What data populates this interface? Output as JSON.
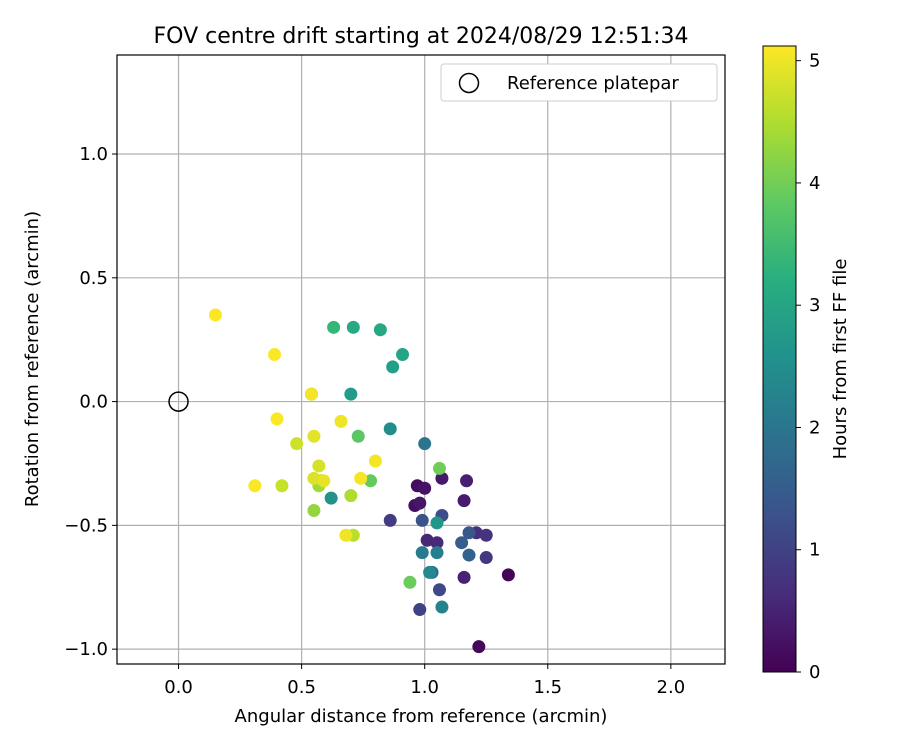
{
  "chart_data": {
    "type": "scatter",
    "title": "FOV centre drift starting at 2024/08/29 12:51:34",
    "xlabel": "Angular distance from reference (arcmin)",
    "ylabel": "Rotation from reference (arcmin)",
    "xlim": [
      -0.25,
      2.22
    ],
    "ylim": [
      -1.06,
      1.4
    ],
    "xticks": [
      0.0,
      0.5,
      1.0,
      1.5,
      2.0
    ],
    "xtick_labels": [
      "0.0",
      "0.5",
      "1.0",
      "1.5",
      "2.0"
    ],
    "yticks": [
      1.0,
      0.5,
      0.0,
      -0.5,
      -1.0
    ],
    "ytick_labels": [
      "1.0",
      "0.5",
      "0.0",
      "−0.5",
      "−1.0"
    ],
    "grid": true,
    "legend": {
      "placement": "top-right",
      "entries": [
        "Reference platepar"
      ]
    },
    "reference_point": {
      "x": 0.0,
      "y": 0.0
    },
    "colorbar": {
      "label": "Hours from first FF file",
      "min": 0,
      "max": 5.12,
      "ticks": [
        0,
        1,
        2,
        3,
        4,
        5
      ],
      "tick_labels": [
        "0",
        "1",
        "2",
        "3",
        "4",
        "5"
      ],
      "colormap": "viridis"
    },
    "points": [
      {
        "x": 1.34,
        "y": -0.7,
        "c": 0.05
      },
      {
        "x": 1.22,
        "y": -0.99,
        "c": 0.1
      },
      {
        "x": 0.97,
        "y": -0.34,
        "c": 0.15
      },
      {
        "x": 0.96,
        "y": -0.42,
        "c": 0.2
      },
      {
        "x": 1.0,
        "y": -0.35,
        "c": 0.25
      },
      {
        "x": 0.98,
        "y": -0.41,
        "c": 0.3
      },
      {
        "x": 1.07,
        "y": -0.31,
        "c": 0.35
      },
      {
        "x": 1.16,
        "y": -0.4,
        "c": 0.4
      },
      {
        "x": 1.17,
        "y": -0.32,
        "c": 0.45
      },
      {
        "x": 1.16,
        "y": -0.71,
        "c": 0.5
      },
      {
        "x": 1.01,
        "y": -0.56,
        "c": 0.55
      },
      {
        "x": 1.05,
        "y": -0.57,
        "c": 0.6
      },
      {
        "x": 1.21,
        "y": -0.53,
        "c": 0.7
      },
      {
        "x": 1.25,
        "y": -0.54,
        "c": 0.75
      },
      {
        "x": 1.25,
        "y": -0.63,
        "c": 0.8
      },
      {
        "x": 0.86,
        "y": -0.48,
        "c": 0.9
      },
      {
        "x": 0.98,
        "y": -0.84,
        "c": 1.0
      },
      {
        "x": 1.06,
        "y": -0.76,
        "c": 1.1
      },
      {
        "x": 1.07,
        "y": -0.46,
        "c": 1.2
      },
      {
        "x": 0.99,
        "y": -0.48,
        "c": 1.3
      },
      {
        "x": 1.18,
        "y": -0.53,
        "c": 1.4
      },
      {
        "x": 1.15,
        "y": -0.57,
        "c": 1.5
      },
      {
        "x": 1.18,
        "y": -0.62,
        "c": 1.6
      },
      {
        "x": 1.03,
        "y": -0.69,
        "c": 1.8
      },
      {
        "x": 1.0,
        "y": -0.17,
        "c": 2.0
      },
      {
        "x": 0.99,
        "y": -0.61,
        "c": 2.1
      },
      {
        "x": 1.05,
        "y": -0.61,
        "c": 2.2
      },
      {
        "x": 1.07,
        "y": -0.83,
        "c": 2.3
      },
      {
        "x": 1.02,
        "y": -0.69,
        "c": 2.4
      },
      {
        "x": 0.86,
        "y": -0.11,
        "c": 2.5
      },
      {
        "x": 0.62,
        "y": -0.39,
        "c": 2.6
      },
      {
        "x": 1.05,
        "y": -0.49,
        "c": 2.7
      },
      {
        "x": 0.7,
        "y": 0.03,
        "c": 2.8
      },
      {
        "x": 0.87,
        "y": 0.14,
        "c": 2.9
      },
      {
        "x": 0.91,
        "y": 0.19,
        "c": 3.0
      },
      {
        "x": 0.82,
        "y": 0.29,
        "c": 3.05
      },
      {
        "x": 0.71,
        "y": 0.3,
        "c": 3.1
      },
      {
        "x": 0.63,
        "y": 0.3,
        "c": 3.4
      },
      {
        "x": 0.54,
        "y": 0.03,
        "c": 3.6
      },
      {
        "x": 0.73,
        "y": -0.14,
        "c": 3.8
      },
      {
        "x": 0.78,
        "y": -0.32,
        "c": 3.9
      },
      {
        "x": 0.94,
        "y": -0.73,
        "c": 3.95
      },
      {
        "x": 1.06,
        "y": -0.27,
        "c": 4.0
      },
      {
        "x": 0.55,
        "y": -0.44,
        "c": 4.3
      },
      {
        "x": 0.57,
        "y": -0.34,
        "c": 4.4
      },
      {
        "x": 0.58,
        "y": -0.32,
        "c": 4.45
      },
      {
        "x": 0.7,
        "y": -0.38,
        "c": 4.5
      },
      {
        "x": 0.71,
        "y": -0.54,
        "c": 4.6
      },
      {
        "x": 0.42,
        "y": -0.34,
        "c": 4.7
      },
      {
        "x": 0.48,
        "y": -0.17,
        "c": 4.75
      },
      {
        "x": 0.57,
        "y": -0.26,
        "c": 4.8
      },
      {
        "x": 0.55,
        "y": -0.31,
        "c": 4.85
      },
      {
        "x": 0.55,
        "y": -0.14,
        "c": 4.9
      },
      {
        "x": 0.59,
        "y": -0.32,
        "c": 4.95
      },
      {
        "x": 0.66,
        "y": -0.08,
        "c": 5.0
      },
      {
        "x": 0.68,
        "y": -0.54,
        "c": 5.0
      },
      {
        "x": 0.74,
        "y": -0.31,
        "c": 5.05
      },
      {
        "x": 0.8,
        "y": -0.24,
        "c": 5.05
      },
      {
        "x": 0.54,
        "y": 0.03,
        "c": 5.05
      },
      {
        "x": 0.31,
        "y": -0.34,
        "c": 5.1
      },
      {
        "x": 0.4,
        "y": -0.07,
        "c": 5.1
      },
      {
        "x": 0.39,
        "y": 0.19,
        "c": 5.1
      },
      {
        "x": 0.15,
        "y": 0.35,
        "c": 5.12
      }
    ]
  }
}
